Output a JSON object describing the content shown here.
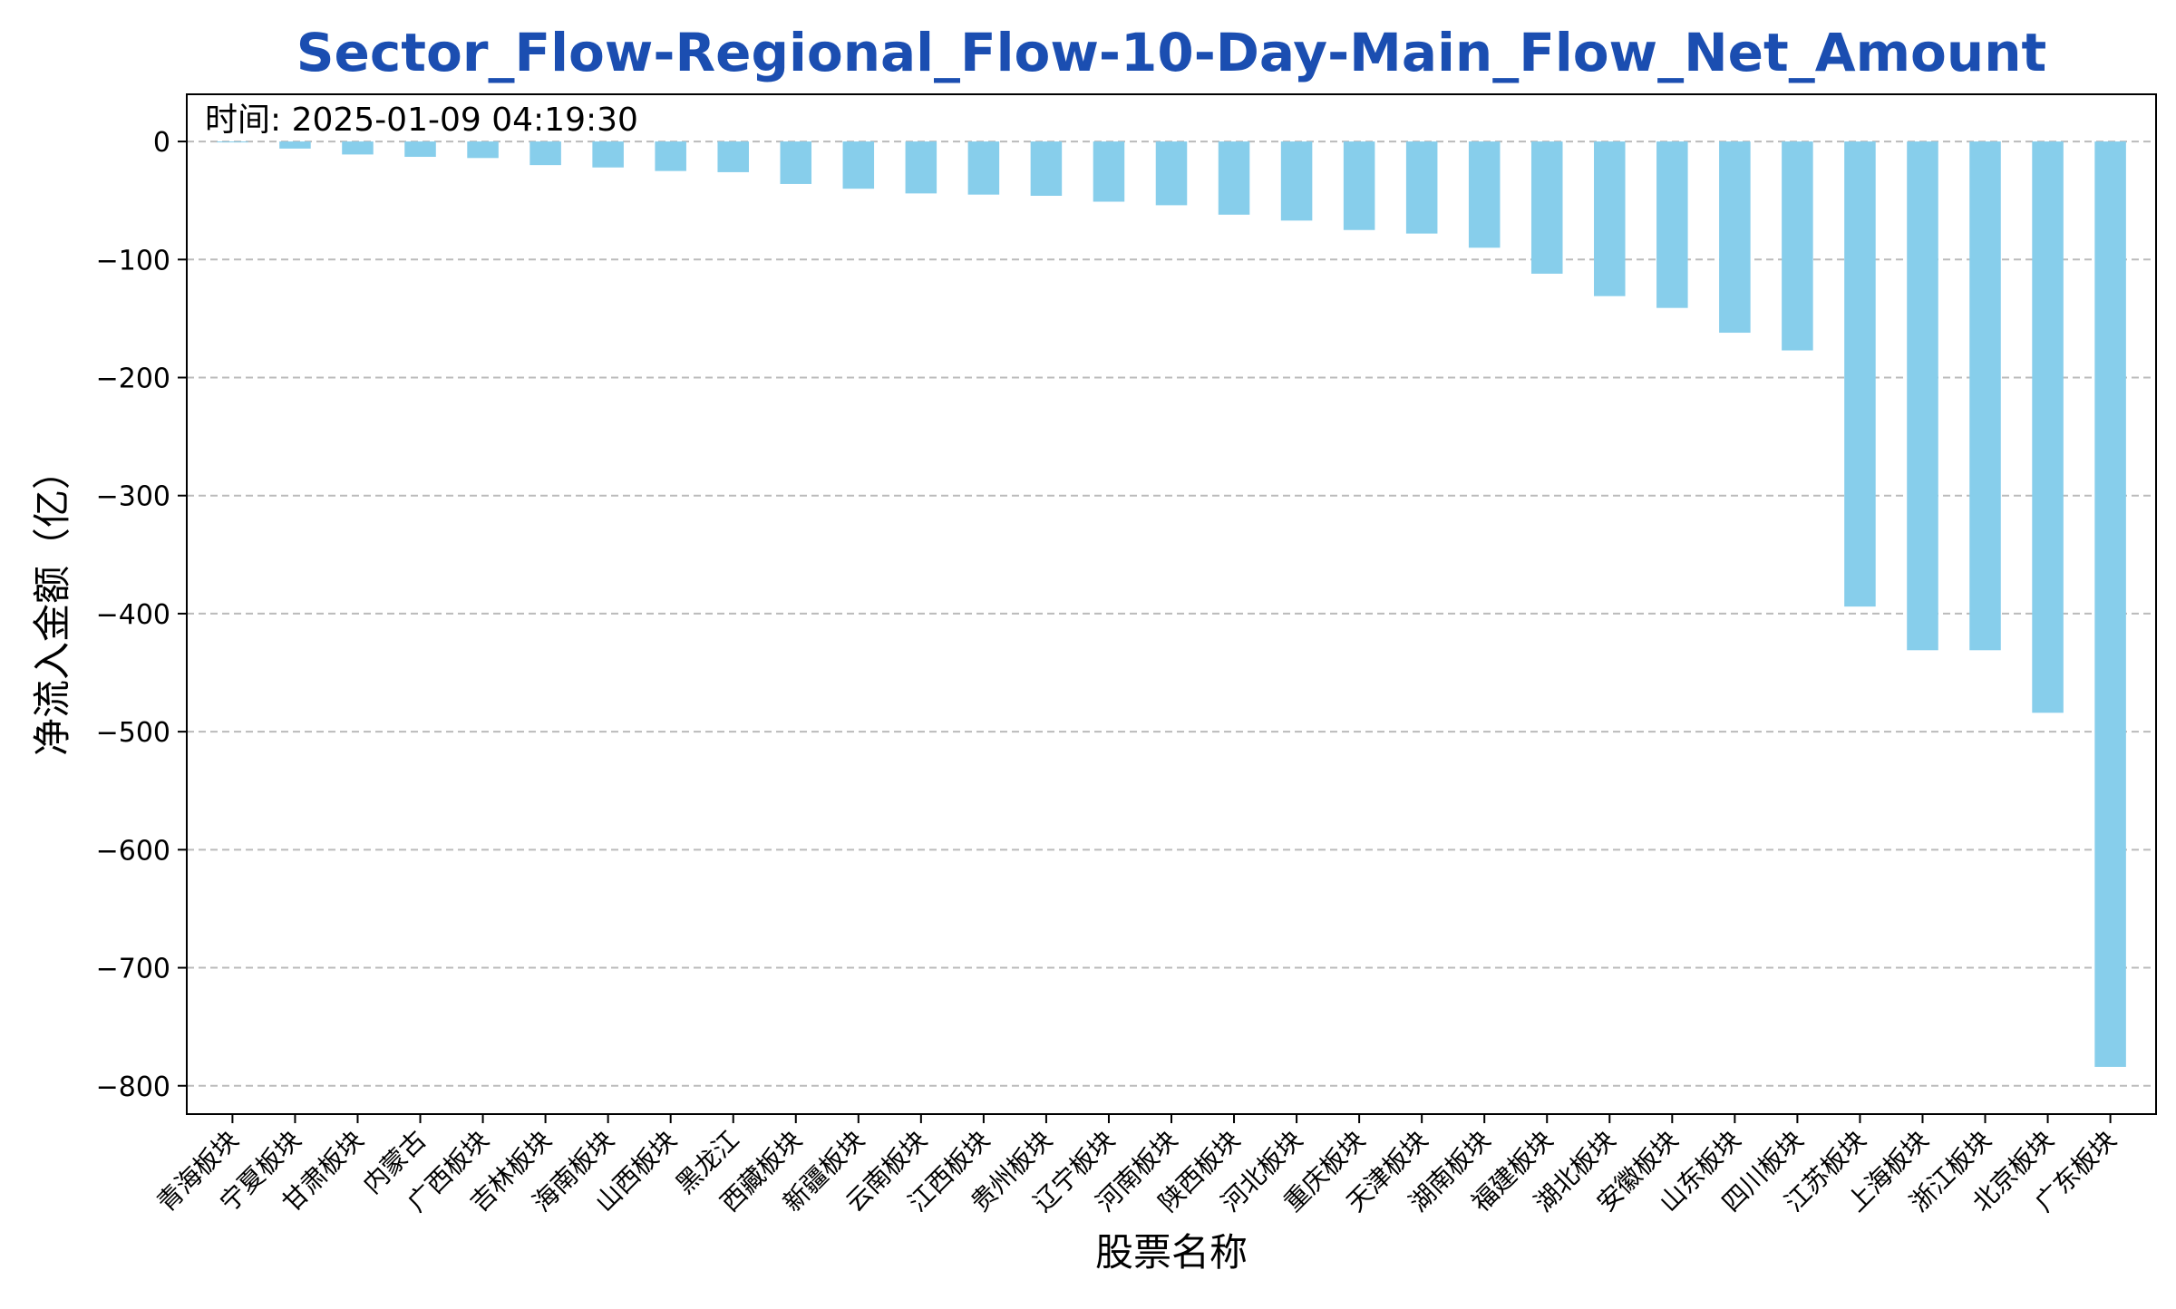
{
  "chart_data": {
    "type": "bar",
    "title": "Sector_Flow-Regional_Flow-10-Day-Main_Flow_Net_Amount",
    "xlabel": "股票名称",
    "ylabel": "净流入金额（亿）",
    "annotation": "时间: 2025-01-09 04:19:30",
    "categories": [
      "青海板块",
      "宁夏板块",
      "甘肃板块",
      "内蒙古",
      "广西板块",
      "吉林板块",
      "海南板块",
      "山西板块",
      "黑龙江",
      "西藏板块",
      "新疆板块",
      "云南板块",
      "江西板块",
      "贵州板块",
      "辽宁板块",
      "河南板块",
      "陕西板块",
      "河北板块",
      "重庆板块",
      "天津板块",
      "湖南板块",
      "福建板块",
      "湖北板块",
      "安徽板块",
      "山东板块",
      "四川板块",
      "江苏板块",
      "上海板块",
      "浙江板块",
      "北京板块",
      "广东板块"
    ],
    "values": [
      -0.5,
      -6,
      -11,
      -13,
      -14,
      -20,
      -22,
      -25,
      -26,
      -36,
      -40,
      -44,
      -45,
      -46,
      -51,
      -54,
      -62,
      -67,
      -75,
      -78,
      -90,
      -112,
      -131,
      -141,
      -162,
      -177,
      -394,
      -431,
      -431,
      -484,
      -784
    ],
    "ylim": [
      -824,
      40
    ],
    "yticks": [
      0,
      -100,
      -200,
      -300,
      -400,
      -500,
      -600,
      -700,
      -800
    ],
    "grid": "y-dashed",
    "legend": "none",
    "colors": {
      "bar": "#87CEEB",
      "title": "#1B4EB1",
      "grid": "#bbbbbb",
      "axis": "#000000"
    }
  }
}
